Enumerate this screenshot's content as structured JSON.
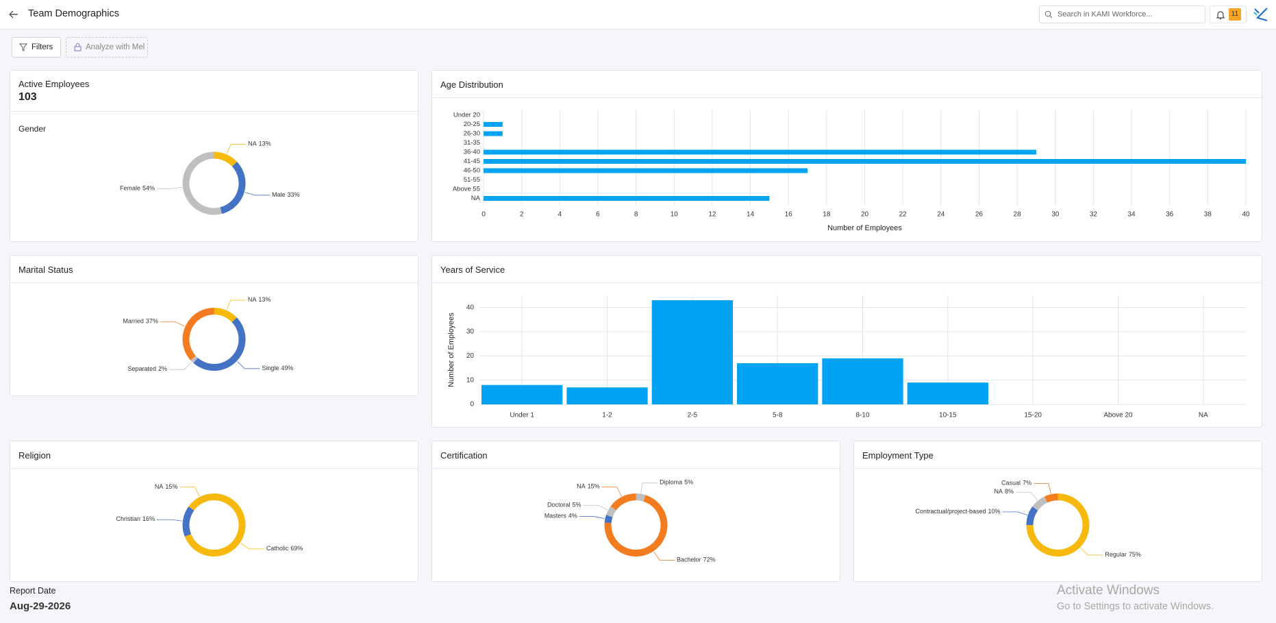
{
  "header": {
    "title": "Team Demographics",
    "search_placeholder": "Search in KAMI Workforce...",
    "notification_count": 11
  },
  "toolbar": {
    "filters": "Filters",
    "analyze": "Analyze with Mel"
  },
  "active_employees": {
    "label": "Active Employees",
    "value": 103
  },
  "chart_data": [
    {
      "type": "pie",
      "title": "Gender",
      "categories": [
        "NA",
        "Male",
        "Female"
      ],
      "values": [
        13,
        33,
        54
      ],
      "value_labels": [
        "13%",
        "33%",
        "54%"
      ],
      "colors": [
        "#f7b90d",
        "#4472c4",
        "#bfbfbf"
      ]
    },
    {
      "type": "bar",
      "orientation": "horizontal",
      "title": "Age Distribution",
      "x_label": "Number of Employees",
      "categories": [
        "Under 20",
        "20-25",
        "26-30",
        "31-35",
        "36-40",
        "41-45",
        "46-50",
        "51-55",
        "Above 55",
        "NA"
      ],
      "values": [
        0,
        1,
        1,
        0,
        29,
        40,
        17,
        0,
        0,
        15
      ],
      "color": "#03a3f4",
      "xlim": [
        0,
        40
      ],
      "xticks": [
        0,
        2,
        4,
        6,
        8,
        10,
        12,
        14,
        16,
        18,
        20,
        22,
        24,
        26,
        28,
        30,
        32,
        34,
        36,
        38,
        40
      ],
      "grid": true
    },
    {
      "type": "pie",
      "title": "Marital Status",
      "categories": [
        "NA",
        "Single",
        "Separated",
        "Married"
      ],
      "values": [
        13,
        49,
        2,
        37
      ],
      "value_labels": [
        "13%",
        "49%",
        "2%",
        "37%"
      ],
      "colors": [
        "#f7b90d",
        "#4472c4",
        "#bfbfbf",
        "#f47c20"
      ]
    },
    {
      "type": "bar",
      "orientation": "vertical",
      "title": "Years of Service",
      "y_label": "Number of Employees",
      "categories": [
        "Under 1",
        "1-2",
        "2-5",
        "5-8",
        "8-10",
        "10-15",
        "15-20",
        "Above 20",
        "NA"
      ],
      "values": [
        8,
        7,
        43,
        17,
        19,
        9,
        0,
        0,
        0
      ],
      "color": "#03a3f4",
      "ylim": [
        0,
        45
      ],
      "yticks": [
        0,
        10,
        20,
        30,
        40
      ],
      "grid": true
    },
    {
      "type": "pie",
      "title": "Religion",
      "categories": [
        "Catholic",
        "Christian",
        "NA"
      ],
      "values": [
        69,
        16,
        15
      ],
      "value_labels": [
        "69%",
        "16%",
        "15%"
      ],
      "colors": [
        "#f7b90d",
        "#4472c4",
        "#f7b90d"
      ]
    },
    {
      "type": "pie",
      "title": "Certification",
      "categories": [
        "Diploma",
        "Bachelor",
        "Masters",
        "Doctoral",
        "NA"
      ],
      "values": [
        5,
        72,
        4,
        5,
        15
      ],
      "value_labels": [
        "5%",
        "72%",
        "4%",
        "5%",
        "15%"
      ],
      "colors": [
        "#bfbfbf",
        "#f47c20",
        "#4472c4",
        "#bfbfbf",
        "#f47c20"
      ]
    },
    {
      "type": "pie",
      "title": "Employment Type",
      "categories": [
        "Regular",
        "Contractual/project-based",
        "NA",
        "Casual"
      ],
      "values": [
        75,
        10,
        8,
        7
      ],
      "value_labels": [
        "75%",
        "10%",
        "8%",
        "7%"
      ],
      "colors": [
        "#f7b90d",
        "#4472c4",
        "#bfbfbf",
        "#f47c20"
      ]
    }
  ],
  "report": {
    "label": "Report Date",
    "date": "Aug-29-2026"
  },
  "watermark": {
    "title": "Activate Windows",
    "subtitle": "Go to Settings to activate Windows."
  }
}
